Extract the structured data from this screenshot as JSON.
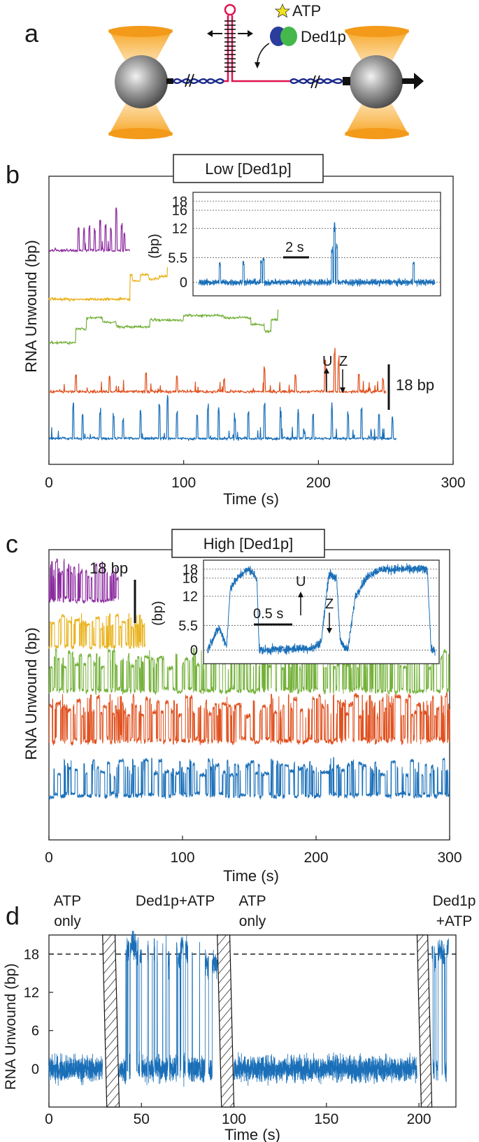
{
  "colors": {
    "purple": "#8b2a9e",
    "yellow": "#e9b21d",
    "green": "#74b13a",
    "orange": "#e0511f",
    "blue": "#1a6fb8",
    "pink": "#e0124f",
    "navy": "#1c2a8a",
    "bead": "#808080",
    "laser": "#f39a1a",
    "ded1_blue": "#2a3c9c",
    "ded1_green": "#44b84a",
    "atp_star": "#f2e21a"
  },
  "panel_a": {
    "letter": "a",
    "atp_label": "ATP",
    "ded1_label": "Ded1p"
  },
  "chart_data": [
    {
      "panel": "b",
      "type": "line",
      "title": "Low [Ded1p]",
      "xlabel": "Time (s)",
      "ylabel": "RNA Unwound (bp)",
      "xlim": [
        0,
        300
      ],
      "xticks": [
        0,
        100,
        200,
        300
      ],
      "scale_bar": "18 bp",
      "annotations": [
        "U",
        "Z"
      ],
      "series": [
        {
          "name": "purple",
          "color": "#8b2a9e",
          "t_end": 60,
          "baseline": 0,
          "events": [
            [
              22,
              0.6
            ],
            [
              26,
              0.5
            ],
            [
              30,
              0.6
            ],
            [
              34,
              0.5
            ],
            [
              38,
              0.7
            ],
            [
              42,
              0.6
            ],
            [
              46,
              0.5
            ],
            [
              50,
              1.0
            ],
            [
              54,
              0.6
            ],
            [
              56,
              0.4
            ]
          ],
          "style": "spiky"
        },
        {
          "name": "yellow",
          "color": "#e9b21d",
          "t_end": 88,
          "baseline": 0,
          "steps": [
            [
              0,
              0
            ],
            [
              60,
              0.55
            ],
            [
              62,
              0.4
            ],
            [
              68,
              0.55
            ],
            [
              74,
              0.45
            ],
            [
              82,
              0.5
            ],
            [
              88,
              0.7
            ]
          ],
          "style": "step"
        },
        {
          "name": "green",
          "color": "#74b13a",
          "t_end": 170,
          "baseline": 0,
          "steps": [
            [
              0,
              0
            ],
            [
              20,
              0.3
            ],
            [
              28,
              0.55
            ],
            [
              40,
              0.45
            ],
            [
              50,
              0.35
            ],
            [
              75,
              0.5
            ],
            [
              100,
              0.6
            ],
            [
              130,
              0.55
            ],
            [
              150,
              0.4
            ],
            [
              160,
              0.25
            ],
            [
              165,
              0.5
            ],
            [
              170,
              0.7
            ]
          ],
          "style": "step"
        },
        {
          "name": "orange",
          "color": "#e0511f",
          "t_end": 250,
          "baseline": 0,
          "events": [
            [
              20,
              0.4
            ],
            [
              45,
              0.4
            ],
            [
              72,
              0.5
            ],
            [
              95,
              0.35
            ],
            [
              130,
              0.3
            ],
            [
              160,
              0.6
            ],
            [
              183,
              0.4
            ],
            [
              205,
              0.7
            ],
            [
              212,
              1.0
            ],
            [
              215,
              0.8
            ],
            [
              230,
              0.4
            ],
            [
              248,
              0.3
            ]
          ],
          "style": "spiky"
        },
        {
          "name": "blue",
          "color": "#1a6fb8",
          "t_end": 258,
          "baseline": 0,
          "events": [
            [
              18,
              0.8
            ],
            [
              25,
              0.6
            ],
            [
              38,
              0.7
            ],
            [
              48,
              0.6
            ],
            [
              55,
              0.5
            ],
            [
              68,
              0.7
            ],
            [
              82,
              0.9
            ],
            [
              88,
              1.0
            ],
            [
              95,
              0.7
            ],
            [
              110,
              0.6
            ],
            [
              118,
              0.8
            ],
            [
              126,
              0.7
            ],
            [
              138,
              0.5
            ],
            [
              148,
              0.6
            ],
            [
              160,
              0.8
            ],
            [
              172,
              0.6
            ],
            [
              185,
              0.7
            ],
            [
              196,
              0.6
            ],
            [
              210,
              0.8
            ],
            [
              222,
              0.6
            ],
            [
              232,
              0.7
            ],
            [
              245,
              0.6
            ],
            [
              255,
              0.5
            ]
          ],
          "style": "spiky"
        }
      ],
      "inset": {
        "ylabel": "(bp)",
        "yticks": [
          "0",
          "5.5",
          "12",
          "16",
          "18"
        ],
        "ytick_values": [
          0,
          5.5,
          12,
          16,
          18
        ],
        "ylim": [
          -3,
          20
        ],
        "scale_bar": "2 s",
        "duration_s": 20,
        "events": [
          [
            1.8,
            4.5
          ],
          [
            3.8,
            4.8
          ],
          [
            5.3,
            5.0
          ],
          [
            5.5,
            5.5
          ],
          [
            11.3,
            8
          ],
          [
            11.5,
            13.5
          ],
          [
            11.7,
            9
          ],
          [
            18.2,
            5
          ]
        ]
      }
    },
    {
      "panel": "c",
      "type": "line",
      "title": "High [Ded1p]",
      "xlabel": "Time (s)",
      "ylabel": "RNA Unwound (bp)",
      "xlim": [
        0,
        300
      ],
      "xticks": [
        0,
        100,
        200,
        300
      ],
      "scale_bar": "18 bp",
      "annotations": [
        "U",
        "Z"
      ],
      "series": [
        {
          "name": "purple",
          "color": "#8b2a9e",
          "t_end": 52,
          "switch_rate": 0.55,
          "style": "telegraph"
        },
        {
          "name": "yellow",
          "color": "#e9b21d",
          "t_end": 72,
          "switch_rate": 0.5,
          "style": "telegraph"
        },
        {
          "name": "green",
          "color": "#74b13a",
          "t_end": 300,
          "switch_rate": 0.5,
          "style": "telegraph"
        },
        {
          "name": "orange",
          "color": "#e0511f",
          "t_end": 300,
          "switch_rate": 0.5,
          "style": "telegraph"
        },
        {
          "name": "blue",
          "color": "#1a6fb8",
          "t_end": 300,
          "switch_rate": 0.35,
          "style": "telegraph"
        }
      ],
      "inset": {
        "ylabel": "(bp)",
        "yticks": [
          "0",
          "5.5",
          "12",
          "16",
          "18"
        ],
        "ytick_values": [
          0,
          5.5,
          12,
          16,
          18
        ],
        "ylim": [
          -3,
          20
        ],
        "scale_bar": "0.5 s",
        "duration_s": 3,
        "segments": [
          [
            0,
            0
          ],
          [
            0.05,
            2
          ],
          [
            0.15,
            5
          ],
          [
            0.25,
            1
          ],
          [
            0.3,
            14
          ],
          [
            0.45,
            17
          ],
          [
            0.55,
            18
          ],
          [
            0.65,
            16
          ],
          [
            0.68,
            0
          ],
          [
            1.4,
            0.5
          ],
          [
            1.5,
            2
          ],
          [
            1.6,
            17
          ],
          [
            1.7,
            16
          ],
          [
            1.75,
            2
          ],
          [
            1.85,
            0
          ],
          [
            1.95,
            12
          ],
          [
            2.05,
            15
          ],
          [
            2.15,
            17
          ],
          [
            2.3,
            18
          ],
          [
            2.9,
            18
          ],
          [
            2.95,
            0
          ]
        ]
      }
    },
    {
      "panel": "d",
      "type": "line",
      "xlabel": "Time (s)",
      "ylabel": "RNA Unwound (bp)",
      "xlim": [
        0,
        220
      ],
      "ylim": [
        -6,
        21
      ],
      "xticks": [
        0,
        50,
        100,
        150,
        200
      ],
      "yticks": [
        0,
        6,
        12,
        18
      ],
      "dashed_at": 18,
      "regions": [
        {
          "label_lines": [
            "ATP",
            "only"
          ],
          "t": [
            0,
            29
          ],
          "mode": "noise"
        },
        {
          "label_lines": [
            "Ded1p+ATP"
          ],
          "t": [
            38,
            91
          ],
          "mode": "telegraph"
        },
        {
          "label_lines": [
            "ATP",
            "only"
          ],
          "t": [
            100,
            199
          ],
          "mode": "noise"
        },
        {
          "label_lines": [
            "Ded1p",
            "+ATP"
          ],
          "t": [
            207,
            216
          ],
          "mode": "telegraph"
        }
      ],
      "hatch_gaps": [
        [
          29,
          38
        ],
        [
          91,
          100
        ],
        [
          199,
          207
        ]
      ]
    }
  ]
}
